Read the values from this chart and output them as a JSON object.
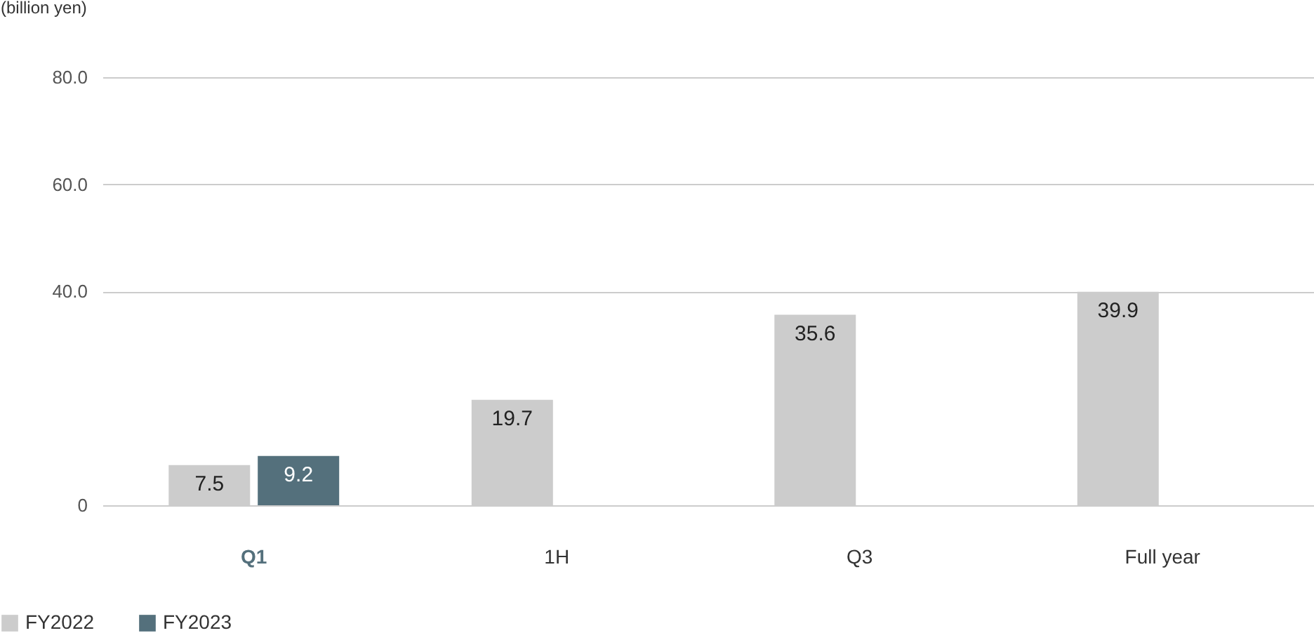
{
  "chart_data": {
    "type": "bar",
    "ylabel": "(billion yen)",
    "categories": [
      "Q1",
      "1H",
      "Q3",
      "Full year"
    ],
    "series": [
      {
        "name": "FY2022",
        "color": "#cccccc",
        "values": [
          7.5,
          19.7,
          35.6,
          39.9
        ]
      },
      {
        "name": "FY2023",
        "color": "#54707c",
        "values": [
          9.2,
          null,
          null,
          null
        ]
      }
    ],
    "ylim": [
      0,
      80
    ],
    "yticks": [
      0,
      {
        "value": 40,
        "label": "40.0"
      },
      {
        "value": 60,
        "label": "60.0"
      },
      {
        "value": 80,
        "label": "80.0"
      }
    ],
    "grid": "y",
    "legend": "bottom left",
    "data_labels": true
  }
}
